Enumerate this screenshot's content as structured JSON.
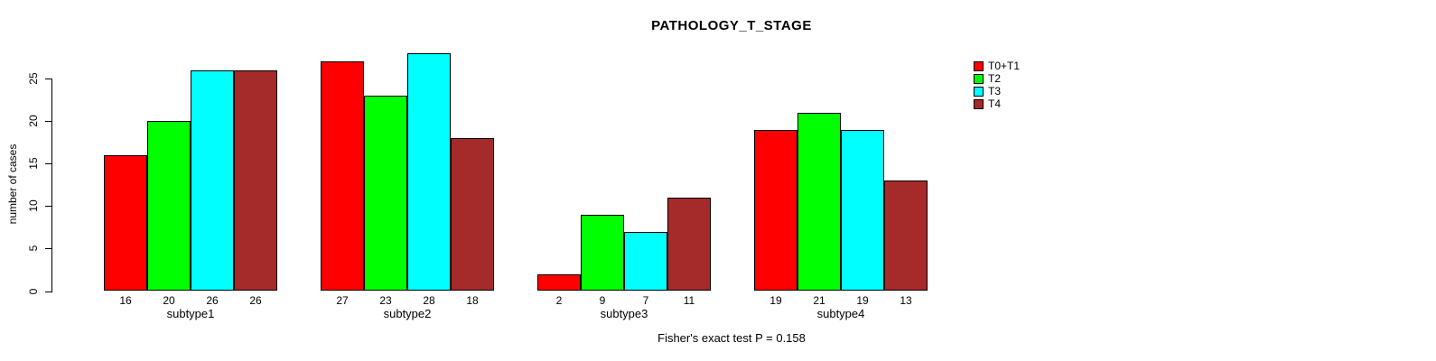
{
  "chart_data": {
    "type": "bar",
    "title": "PATHOLOGY_T_STAGE",
    "ylabel": "number of cases",
    "xlabel": "",
    "caption": "Fisher's exact test P = 0.158",
    "categories": [
      "subtype1",
      "subtype2",
      "subtype3",
      "subtype4"
    ],
    "series": [
      {
        "name": "T0+T1",
        "color": "#FF0000",
        "values": [
          16,
          27,
          2,
          19
        ]
      },
      {
        "name": "T2",
        "color": "#00FF00",
        "values": [
          20,
          23,
          9,
          21
        ]
      },
      {
        "name": "T3",
        "color": "#00FFFF",
        "values": [
          26,
          28,
          7,
          19
        ]
      },
      {
        "name": "T4",
        "color": "#A52A2A",
        "values": [
          26,
          18,
          11,
          13
        ]
      }
    ],
    "yticks": [
      0,
      5,
      10,
      15,
      20,
      25
    ],
    "ylim": [
      0,
      28
    ],
    "grid": false,
    "show_value_labels": true,
    "legend_position": "top-right",
    "axis_color": "#000000",
    "background_color": "#FFFFFF"
  }
}
